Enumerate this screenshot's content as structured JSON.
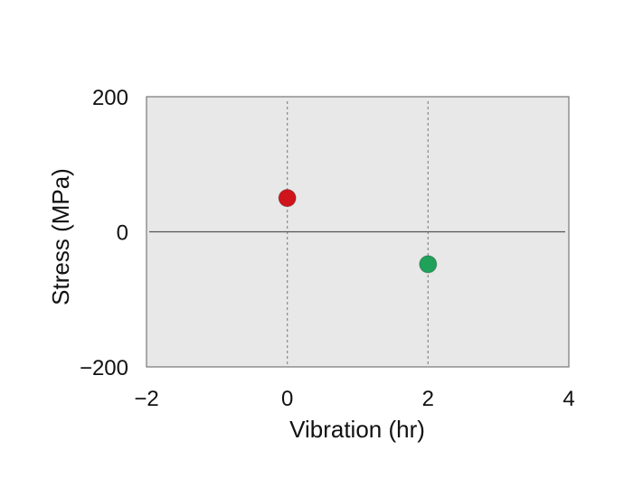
{
  "chart_data": {
    "type": "scatter",
    "title": "",
    "xlabel": "Vibration (hr)",
    "ylabel": "Stress (MPa)",
    "xlim": [
      -2,
      4
    ],
    "ylim": [
      -200,
      200
    ],
    "x_ticks": [
      -2,
      0,
      2,
      4
    ],
    "y_ticks": [
      200,
      0,
      -200
    ],
    "x_tick_labels": [
      "−2",
      "0",
      "2",
      "4"
    ],
    "y_tick_labels": [
      "200",
      "0",
      "−200"
    ],
    "vertical_reference_lines": [
      0,
      2
    ],
    "horizontal_reference_lines": [
      0
    ],
    "grid": false,
    "background_color": "#e7e8e7",
    "points": [
      {
        "x": 0,
        "y": 50,
        "color": "#d0141c"
      },
      {
        "x": 2,
        "y": -48,
        "color": "#1fa15a"
      }
    ]
  }
}
